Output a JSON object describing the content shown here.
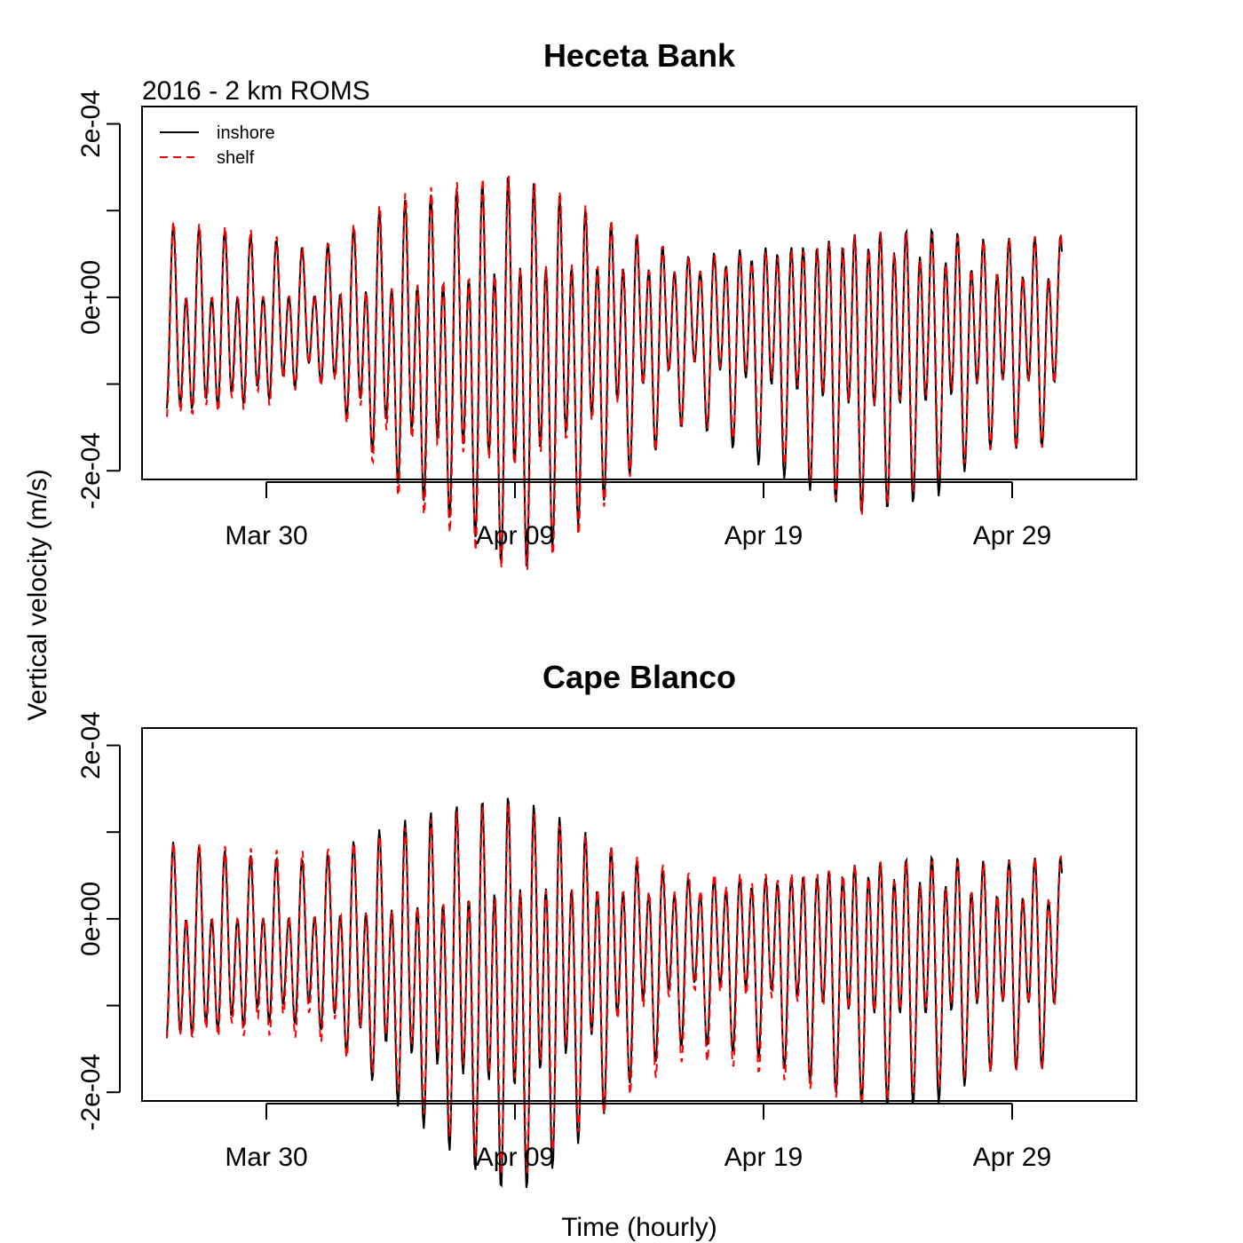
{
  "figure": {
    "ylabel": "Vertical velocity (m/s)",
    "xlabel": "Time (hourly)"
  },
  "chart_data": [
    {
      "type": "line",
      "title": "Heceta Bank",
      "subtitle": "2016 - 2 km ROMS",
      "xlabel": "Time (hourly)",
      "ylabel": "Vertical velocity (m/s)",
      "ylim": [
        -0.00021,
        0.00022
      ],
      "xlim": [
        "2016-03-25",
        "2016-05-04"
      ],
      "x_ticks": [
        {
          "date": "2016-03-30",
          "label": "Mar 30"
        },
        {
          "date": "2016-04-09",
          "label": "Apr 09"
        },
        {
          "date": "2016-04-19",
          "label": "Apr 19"
        },
        {
          "date": "2016-04-29",
          "label": "Apr 29"
        }
      ],
      "y_ticks": [
        {
          "value": -0.0002,
          "label": "-2e-04"
        },
        {
          "value": -0.0001,
          "label": ""
        },
        {
          "value": 0,
          "label": "0e+00"
        },
        {
          "value": 0.0001,
          "label": ""
        },
        {
          "value": 0.0002,
          "label": "2e-04"
        }
      ],
      "legend": {
        "position": "top-left"
      },
      "x_start": "2016-03-26T00:00",
      "x_end": "2016-05-01T00:00",
      "tidal_period_hours": 12.42,
      "series": [
        {
          "name": "inshore",
          "color": "#000000",
          "dash": "solid",
          "phase_hours": 0.0,
          "amplitude_envelope": [
            {
              "date": "2016-03-26T00:00",
              "amp": 9.5e-05
            },
            {
              "date": "2016-03-30T00:00",
              "amp": 8e-05
            },
            {
              "date": "2016-04-01T00:00",
              "amp": 6e-05
            },
            {
              "date": "2016-04-04T00:00",
              "amp": 0.00013
            },
            {
              "date": "2016-04-07T00:00",
              "amp": 0.00016
            },
            {
              "date": "2016-04-09T00:00",
              "amp": 0.00019
            },
            {
              "date": "2016-04-11T00:00",
              "amp": 0.00016
            },
            {
              "date": "2016-04-14T00:00",
              "amp": 0.00011
            },
            {
              "date": "2016-04-16T00:00",
              "amp": 8e-05
            },
            {
              "date": "2016-04-19T00:00",
              "amp": 0.00011
            },
            {
              "date": "2016-04-23T00:00",
              "amp": 0.00014
            },
            {
              "date": "2016-04-26T00:00",
              "amp": 0.00013
            },
            {
              "date": "2016-04-28T00:00",
              "amp": 0.0001
            },
            {
              "date": "2016-05-01T00:00",
              "amp": 0.0001
            }
          ]
        },
        {
          "name": "shelf",
          "color": "#ff0000",
          "dash": "dashed",
          "phase_hours": 0.3,
          "amplitude_envelope": [
            {
              "date": "2016-03-26T00:00",
              "amp": 0.0001
            },
            {
              "date": "2016-03-30T00:00",
              "amp": 8.5e-05
            },
            {
              "date": "2016-04-01T00:00",
              "amp": 6e-05
            },
            {
              "date": "2016-04-04T00:00",
              "amp": 0.00014
            },
            {
              "date": "2016-04-07T00:00",
              "amp": 0.00017
            },
            {
              "date": "2016-04-09T00:00",
              "amp": 0.00019
            },
            {
              "date": "2016-04-11T00:00",
              "amp": 0.00017
            },
            {
              "date": "2016-04-14T00:00",
              "amp": 0.00011
            },
            {
              "date": "2016-04-16T00:00",
              "amp": 8e-05
            },
            {
              "date": "2016-04-19T00:00",
              "amp": 0.0001
            },
            {
              "date": "2016-04-23T00:00",
              "amp": 0.00014
            },
            {
              "date": "2016-04-26T00:00",
              "amp": 0.00012
            },
            {
              "date": "2016-04-28T00:00",
              "amp": 0.0001
            },
            {
              "date": "2016-05-01T00:00",
              "amp": 0.0001
            }
          ]
        }
      ]
    },
    {
      "type": "line",
      "title": "Cape Blanco",
      "xlabel": "Time (hourly)",
      "ylabel": "Vertical velocity (m/s)",
      "ylim": [
        -0.00021,
        0.00022
      ],
      "xlim": [
        "2016-03-25",
        "2016-05-04"
      ],
      "x_ticks": [
        {
          "date": "2016-03-30",
          "label": "Mar 30"
        },
        {
          "date": "2016-04-09",
          "label": "Apr 09"
        },
        {
          "date": "2016-04-19",
          "label": "Apr 19"
        },
        {
          "date": "2016-04-29",
          "label": "Apr 29"
        }
      ],
      "y_ticks": [
        {
          "value": -0.0002,
          "label": "-2e-04"
        },
        {
          "value": -0.0001,
          "label": ""
        },
        {
          "value": 0,
          "label": "0e+00"
        },
        {
          "value": 0.0001,
          "label": ""
        },
        {
          "value": 0.0002,
          "label": "2e-04"
        }
      ],
      "x_start": "2016-03-26T00:00",
      "x_end": "2016-05-01T00:00",
      "tidal_period_hours": 12.42,
      "series": [
        {
          "name": "inshore",
          "color": "#000000",
          "dash": "solid",
          "phase_hours": 0.0,
          "amplitude_envelope": [
            {
              "date": "2016-03-26T00:00",
              "amp": 0.0001
            },
            {
              "date": "2016-03-30T00:00",
              "amp": 8e-05
            },
            {
              "date": "2016-04-01T00:00",
              "amp": 8e-05
            },
            {
              "date": "2016-04-04T00:00",
              "amp": 0.00013
            },
            {
              "date": "2016-04-07T00:00",
              "amp": 0.00017
            },
            {
              "date": "2016-04-09T00:00",
              "amp": 0.00019
            },
            {
              "date": "2016-04-11T00:00",
              "amp": 0.00016
            },
            {
              "date": "2016-04-14T00:00",
              "amp": 0.0001
            },
            {
              "date": "2016-04-16T00:00",
              "amp": 8e-05
            },
            {
              "date": "2016-04-19T00:00",
              "amp": 9e-05
            },
            {
              "date": "2016-04-23T00:00",
              "amp": 0.00012
            },
            {
              "date": "2016-04-26T00:00",
              "amp": 0.00012
            },
            {
              "date": "2016-04-28T00:00",
              "amp": 0.0001
            },
            {
              "date": "2016-05-01T00:00",
              "amp": 0.0001
            }
          ]
        },
        {
          "name": "shelf",
          "color": "#ff0000",
          "dash": "dashed",
          "phase_hours": 0.3,
          "amplitude_envelope": [
            {
              "date": "2016-03-26T00:00",
              "amp": 0.0001
            },
            {
              "date": "2016-03-30T00:00",
              "amp": 9e-05
            },
            {
              "date": "2016-04-01T00:00",
              "amp": 9e-05
            },
            {
              "date": "2016-04-04T00:00",
              "amp": 0.00012
            },
            {
              "date": "2016-04-07T00:00",
              "amp": 0.00016
            },
            {
              "date": "2016-04-09T00:00",
              "amp": 0.00018
            },
            {
              "date": "2016-04-11T00:00",
              "amp": 0.00015
            },
            {
              "date": "2016-04-14T00:00",
              "amp": 0.00011
            },
            {
              "date": "2016-04-16T00:00",
              "amp": 9e-05
            },
            {
              "date": "2016-04-19T00:00",
              "amp": 0.0001
            },
            {
              "date": "2016-04-23T00:00",
              "amp": 0.00012
            },
            {
              "date": "2016-04-26T00:00",
              "amp": 0.00011
            },
            {
              "date": "2016-04-28T00:00",
              "amp": 0.0001
            },
            {
              "date": "2016-05-01T00:00",
              "amp": 0.0001
            }
          ]
        }
      ]
    }
  ]
}
